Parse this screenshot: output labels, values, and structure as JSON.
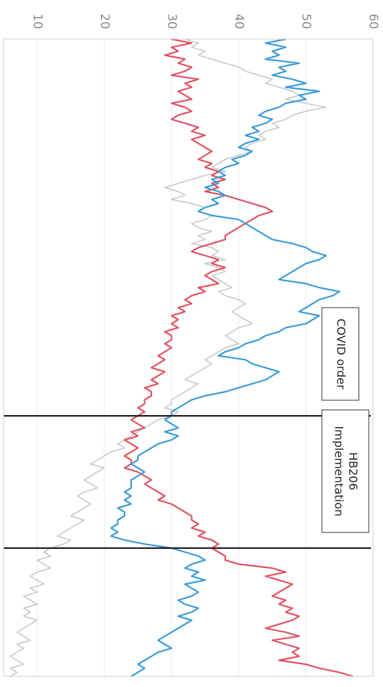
{
  "chart_data": {
    "type": "line",
    "orientation": "rotated-90-clockwise",
    "ylim": [
      5,
      60
    ],
    "yticks": [
      10,
      20,
      30,
      40,
      50,
      60
    ],
    "x_count": 160,
    "grid": true,
    "legend": "none",
    "annotations": [
      {
        "label": "COVID order",
        "x": 94
      },
      {
        "label": "HB206 Implementation",
        "x": 127
      }
    ],
    "series": [
      {
        "color": "#3a9ad9",
        "values": [
          47,
          44,
          47,
          45,
          46,
          44,
          49,
          46,
          47,
          45,
          48,
          50,
          47,
          52,
          49,
          50,
          47,
          46,
          44,
          43,
          45,
          44,
          42,
          43,
          41,
          43,
          41,
          40,
          42,
          41,
          39,
          40,
          38,
          37,
          38,
          36,
          37,
          35,
          37,
          38,
          36,
          37,
          35,
          34,
          36,
          40,
          41,
          42,
          43,
          44,
          45,
          48,
          50,
          51,
          53,
          52,
          50,
          49,
          48,
          47,
          46,
          50,
          52,
          55,
          54,
          52,
          51,
          50,
          49,
          52,
          51,
          50,
          47,
          46,
          44,
          43,
          41,
          40,
          38,
          37,
          41,
          42,
          44,
          46,
          45,
          44,
          42,
          40,
          38,
          35,
          33,
          32,
          31,
          30,
          30,
          29,
          30,
          31,
          29,
          31,
          30,
          28,
          27,
          26,
          25,
          25,
          24,
          25,
          26,
          25,
          24,
          24,
          24,
          23,
          24,
          23,
          24,
          22,
          23,
          23,
          22,
          22,
          21,
          22,
          21,
          23,
          26,
          30,
          32,
          34,
          35,
          33,
          32,
          34,
          33,
          35,
          32,
          33,
          34,
          33,
          31,
          32,
          34,
          33,
          31,
          33,
          32,
          31,
          30,
          29,
          28,
          29,
          30,
          28,
          27,
          26,
          25,
          26,
          25,
          24
        ]
      },
      {
        "color": "#e05260",
        "values": [
          30,
          33,
          30,
          31,
          29,
          32,
          31,
          33,
          32,
          30,
          34,
          32,
          33,
          31,
          32,
          33,
          30,
          32,
          33,
          31,
          30,
          32,
          34,
          33,
          35,
          33,
          34,
          35,
          36,
          35,
          34,
          36,
          35,
          37,
          36,
          38,
          36,
          37,
          35,
          38,
          40,
          42,
          44,
          45,
          43,
          42,
          41,
          40,
          39,
          38,
          38,
          36,
          34,
          33,
          35,
          37,
          36,
          38,
          36,
          35,
          36,
          37,
          34,
          35,
          33,
          32,
          33,
          31,
          32,
          30,
          31,
          30,
          31,
          29,
          30,
          30,
          29,
          30,
          29,
          28,
          29,
          28,
          27,
          29,
          28,
          27,
          28,
          26,
          27,
          27,
          26,
          26,
          25,
          26,
          25,
          24,
          25,
          26,
          24,
          25,
          23,
          24,
          25,
          24,
          23,
          24,
          24,
          23,
          25,
          26,
          27,
          26,
          27,
          28,
          29,
          28,
          30,
          31,
          32,
          33,
          33,
          34,
          33,
          35,
          34,
          36,
          37,
          36,
          37,
          38,
          38,
          40,
          45,
          47,
          44,
          46,
          48,
          47,
          46,
          45,
          47,
          46,
          48,
          47,
          49,
          48,
          46,
          44,
          47,
          49,
          45,
          47,
          49,
          48,
          49,
          46,
          50,
          52,
          55,
          57
        ]
      },
      {
        "color": "#c8c8c8",
        "values": [
          32,
          34,
          33,
          35,
          34,
          36,
          38,
          40,
          41,
          43,
          45,
          44,
          46,
          48,
          49,
          47,
          50,
          53,
          50,
          48,
          47,
          45,
          46,
          44,
          43,
          44,
          42,
          41,
          42,
          40,
          38,
          37,
          36,
          38,
          35,
          33,
          31,
          29,
          31,
          32,
          30,
          33,
          35,
          34,
          36,
          35,
          33,
          34,
          36,
          34,
          35,
          33,
          36,
          37,
          36,
          38,
          35,
          37,
          38,
          36,
          37,
          38,
          39,
          37,
          38,
          40,
          41,
          40,
          39,
          40,
          41,
          42,
          40,
          39,
          38,
          39,
          40,
          38,
          37,
          36,
          35,
          36,
          35,
          34,
          33,
          32,
          34,
          33,
          32,
          31,
          30,
          30,
          29,
          31,
          30,
          28,
          27,
          26,
          25,
          24,
          23,
          22,
          23,
          21,
          20,
          19,
          18,
          20,
          19,
          18,
          17,
          18,
          19,
          17,
          16,
          17,
          18,
          17,
          16,
          15,
          17,
          16,
          15,
          14,
          13,
          15,
          14,
          12,
          11,
          12,
          10,
          11,
          12,
          10,
          9,
          10,
          11,
          9,
          10,
          8,
          9,
          10,
          8,
          9,
          8,
          10,
          9,
          8,
          7,
          8,
          9,
          7,
          8,
          7,
          6,
          7,
          8,
          6,
          7,
          6
        ]
      }
    ]
  }
}
